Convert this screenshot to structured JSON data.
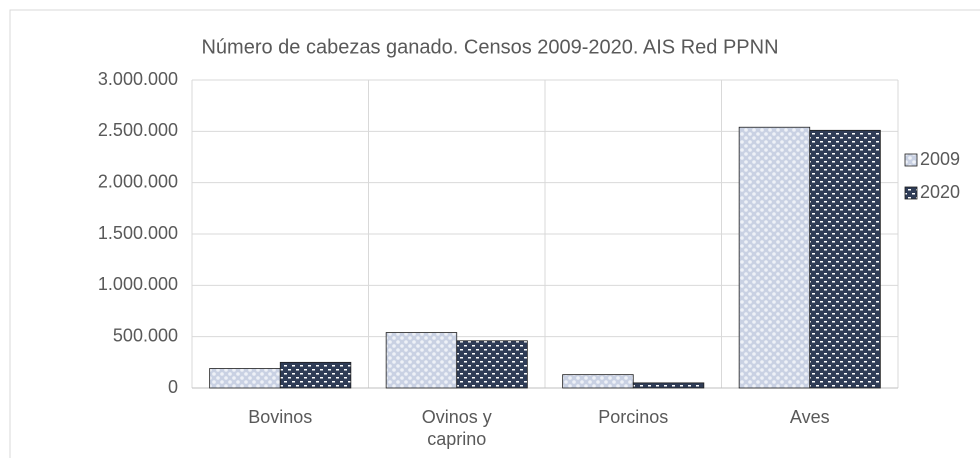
{
  "chart_data": {
    "type": "bar",
    "title": "Número de cabezas ganado. Censos 2009-2020. AIS Red PPNN",
    "categories": [
      "Bovinos",
      "Ovinos y caprino",
      "Porcinos",
      "Aves"
    ],
    "series": [
      {
        "name": "2009",
        "color": "#c9d1e3",
        "values": [
          190000,
          540000,
          130000,
          2540000
        ]
      },
      {
        "name": "2020",
        "color": "#2f3c56",
        "values": [
          250000,
          460000,
          50000,
          2510000
        ]
      }
    ],
    "ylim": [
      0,
      3000000
    ],
    "yticks": [
      0,
      {
        "value": 500000,
        "label": "500.000"
      },
      {
        "value": 1000000,
        "label": "1.000.000"
      },
      {
        "value": 1500000,
        "label": "1.500.000"
      },
      {
        "value": 2000000,
        "label": "2.000.000"
      },
      {
        "value": 2500000,
        "label": "2.500.000"
      },
      {
        "value": 3000000,
        "label": "3.000.000"
      }
    ],
    "grid": true,
    "legend": "right"
  }
}
